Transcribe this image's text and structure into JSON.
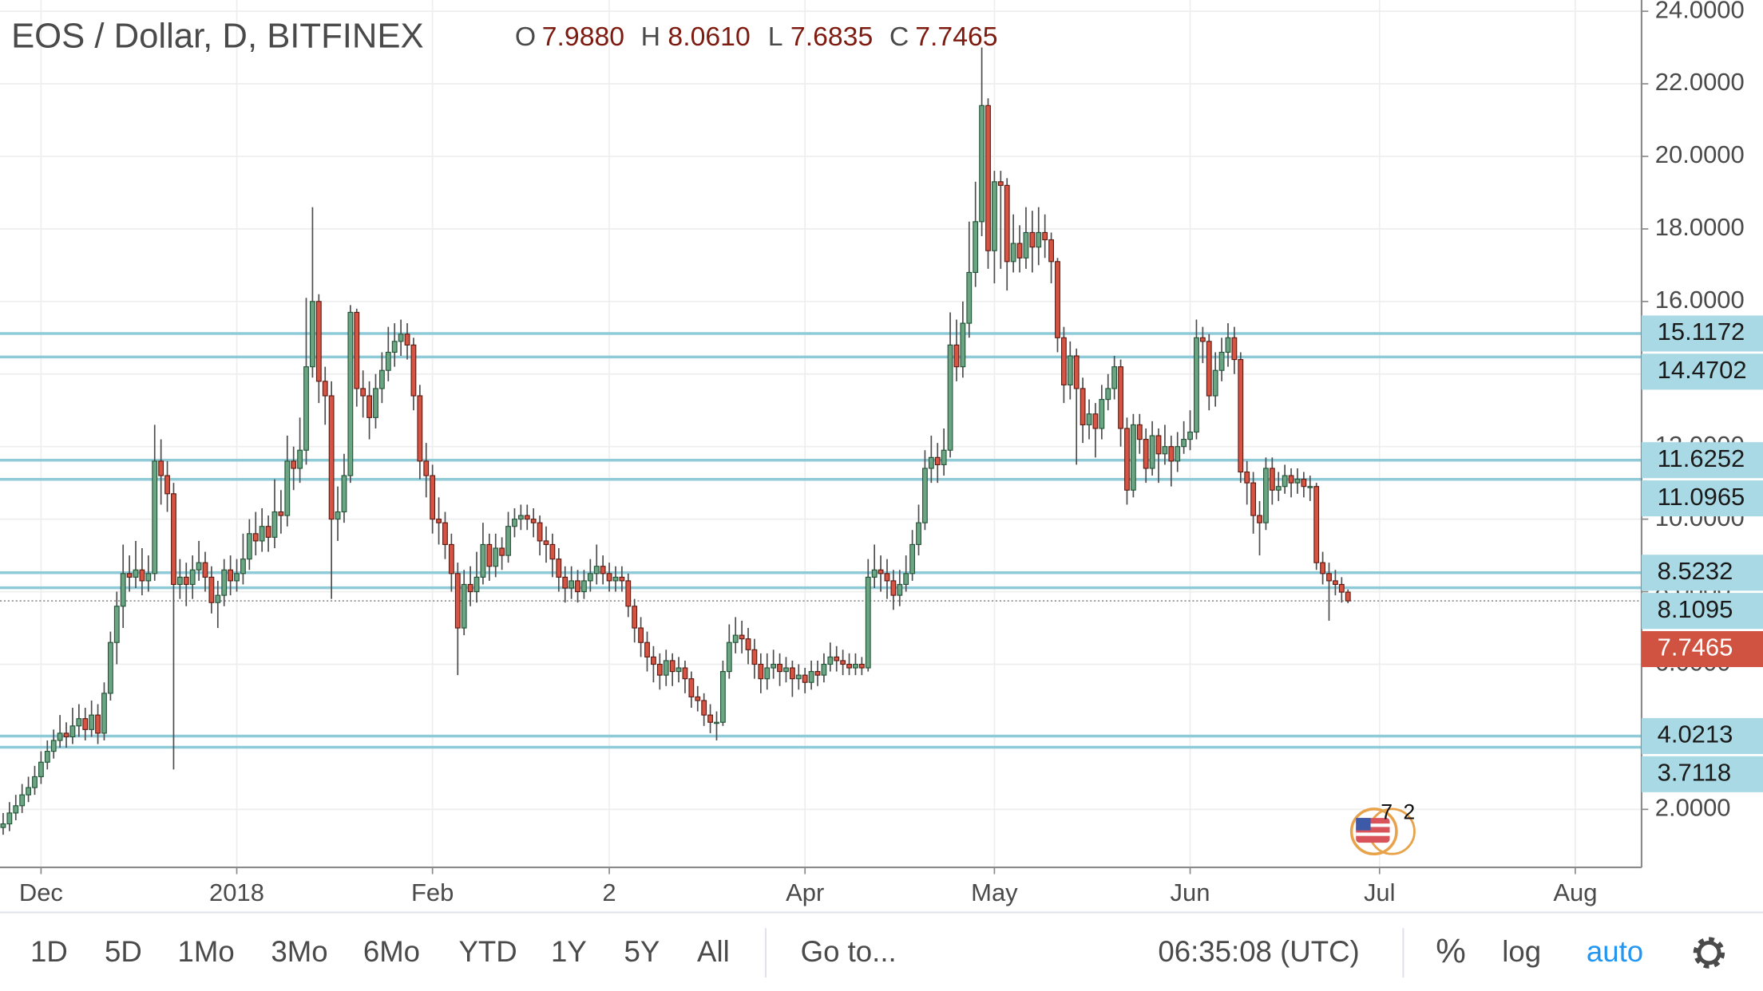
{
  "chart_data": {
    "type": "candlestick",
    "title": "EOS / Dollar, D, BITFINEX",
    "legend": [
      {
        "key": "O",
        "value": "7.9880"
      },
      {
        "key": "H",
        "value": "8.0610"
      },
      {
        "key": "L",
        "value": "7.6835"
      },
      {
        "key": "C",
        "value": "7.7465"
      }
    ],
    "categories": [
      null,
      null,
      null,
      null,
      null,
      null,
      "Dec",
      null,
      null,
      null,
      null,
      null,
      null,
      null,
      null,
      null,
      null,
      null,
      null,
      null,
      null,
      null,
      null,
      null,
      null,
      null,
      null,
      null,
      null,
      null,
      null,
      null,
      null,
      null,
      null,
      null,
      null,
      "2018",
      null,
      null,
      null,
      null,
      null,
      null,
      null,
      null,
      null,
      null,
      null,
      null,
      null,
      null,
      null,
      null,
      null,
      null,
      null,
      null,
      null,
      null,
      null,
      null,
      null,
      null,
      null,
      null,
      null,
      null,
      "Feb",
      null,
      null,
      null,
      null,
      null,
      null,
      null,
      null,
      null,
      null,
      null,
      null,
      null,
      null,
      null,
      null,
      null,
      null,
      null,
      null,
      null,
      null,
      null,
      null,
      null,
      null,
      null,
      "2",
      null,
      null,
      null,
      null,
      null,
      null,
      null,
      null,
      null,
      null,
      null,
      null,
      null,
      null,
      null,
      null,
      null,
      null,
      null,
      null,
      null,
      null,
      null,
      null,
      null,
      null,
      null,
      null,
      null,
      null,
      "Apr",
      null,
      null,
      null,
      null,
      null,
      null,
      null,
      null,
      null,
      null,
      null,
      null,
      null,
      null,
      null,
      null,
      null,
      null,
      null,
      null,
      null,
      null,
      null,
      null,
      null,
      null,
      null,
      null,
      null,
      "May",
      null,
      null,
      null,
      null,
      null,
      null,
      null,
      null,
      null,
      null,
      null,
      null,
      null,
      null,
      null,
      null,
      null,
      null,
      null,
      null,
      null,
      null,
      null,
      null,
      null,
      null,
      null,
      null,
      null,
      null,
      "Jun",
      null,
      null,
      null,
      null,
      null,
      null,
      null,
      null,
      null,
      null,
      null,
      null,
      null,
      null,
      null,
      null,
      null,
      null,
      null,
      null,
      null,
      null,
      null,
      null,
      null,
      null,
      null,
      null,
      null,
      "Jul",
      null,
      null,
      null,
      null,
      null,
      null,
      null,
      null,
      null,
      null,
      null,
      null,
      null,
      null,
      null,
      null,
      null,
      null,
      null,
      null,
      null,
      null,
      null,
      null,
      null,
      null,
      null,
      null,
      null,
      null,
      "Aug",
      null,
      null,
      null,
      null,
      null,
      null,
      null,
      null,
      null,
      null
    ],
    "open": [
      1.5,
      1.6,
      1.9,
      2.1,
      2.4,
      2.6,
      2.9,
      3.3,
      3.6,
      3.9,
      4.1,
      4.0,
      4.3,
      4.5,
      4.2,
      4.6,
      4.1,
      5.2,
      6.6,
      7.6,
      8.5,
      8.4,
      8.6,
      8.3,
      8.5,
      11.6,
      11.2,
      10.7,
      8.2,
      8.4,
      8.2,
      8.6,
      8.8,
      8.4,
      7.7,
      7.9,
      8.6,
      8.3,
      8.5,
      8.9,
      9.6,
      9.4,
      9.8,
      9.5,
      10.2,
      10.1,
      11.6,
      11.4,
      11.9,
      14.2,
      16.0,
      13.8,
      13.4,
      10.0,
      10.2,
      11.2,
      15.7,
      13.6,
      13.4,
      12.8,
      13.6,
      14.1,
      14.6,
      14.9,
      15.1,
      14.8,
      13.4,
      11.6,
      11.2,
      10.0,
      9.9,
      9.3,
      8.5,
      7.0,
      8.2,
      8.0,
      8.4,
      9.3,
      8.7,
      9.2,
      9.0,
      9.8,
      10.0,
      10.1,
      10.0,
      9.9,
      9.4,
      9.3,
      8.9,
      8.4,
      8.1,
      8.3,
      8.0,
      8.3,
      8.5,
      8.7,
      8.5,
      8.3,
      8.4,
      8.3,
      7.6,
      7.0,
      6.6,
      6.2,
      6.0,
      5.7,
      6.1,
      5.8,
      5.9,
      5.6,
      5.1,
      5.0,
      4.6,
      4.4,
      4.4,
      5.8,
      6.6,
      6.8,
      6.7,
      6.4,
      6.0,
      5.6,
      5.9,
      6.0,
      5.8,
      5.9,
      5.6,
      5.7,
      5.5,
      5.8,
      5.7,
      6.0,
      6.2,
      6.1,
      6.0,
      5.9,
      6.0,
      5.9,
      8.4,
      8.6,
      8.5,
      8.3,
      7.9,
      8.2,
      8.5,
      9.3,
      9.9,
      11.4,
      11.7,
      11.5,
      11.9,
      14.8,
      14.2,
      15.4,
      16.8,
      18.2,
      21.4,
      17.4,
      19.3,
      19.2,
      17.1,
      17.6,
      17.2,
      17.9,
      17.5,
      17.9,
      17.7,
      17.1,
      15.0,
      13.7,
      14.5,
      13.6,
      12.6,
      12.9,
      12.5,
      13.3,
      13.6,
      14.2,
      12.5,
      10.8,
      12.6,
      12.2,
      11.4,
      12.3,
      11.8,
      12.0,
      11.6,
      12.0,
      12.2,
      12.4,
      15.0,
      14.9,
      13.4,
      14.1,
      14.6,
      15.0,
      14.4,
      11.3,
      11.0,
      10.1,
      9.9,
      11.4,
      10.8,
      10.9,
      11.2,
      11.0,
      11.1,
      10.9,
      10.9,
      8.8,
      8.5,
      8.3,
      8.2,
      7.988,
      null,
      null,
      null,
      null,
      null,
      null,
      null,
      null,
      null,
      null,
      null,
      null,
      null,
      null,
      null,
      null,
      null,
      null,
      null,
      null,
      null,
      null,
      null,
      null,
      null,
      null,
      null,
      null,
      null,
      null,
      null,
      null,
      null,
      null,
      null,
      null,
      null,
      null,
      null,
      null,
      null,
      null,
      null,
      null,
      null,
      null
    ],
    "high": [
      1.9,
      2.2,
      2.4,
      2.7,
      2.9,
      3.2,
      3.6,
      3.9,
      4.2,
      4.6,
      4.4,
      4.8,
      4.9,
      4.8,
      5.0,
      4.9,
      5.5,
      6.9,
      8.0,
      9.3,
      9.0,
      9.4,
      9.2,
      9.0,
      12.6,
      12.2,
      11.6,
      11.0,
      8.9,
      8.8,
      9.0,
      9.4,
      9.1,
      8.7,
      8.3,
      8.9,
      9.0,
      8.9,
      9.6,
      10.0,
      10.2,
      10.3,
      10.1,
      11.1,
      10.8,
      12.3,
      12.0,
      12.8,
      16.1,
      18.6,
      16.2,
      14.2,
      13.8,
      10.9,
      11.8,
      15.9,
      15.8,
      14.1,
      13.8,
      14.0,
      14.6,
      15.3,
      15.4,
      15.5,
      15.4,
      15.0,
      13.7,
      12.1,
      11.5,
      10.6,
      10.2,
      9.6,
      8.8,
      8.6,
      8.7,
      9.1,
      9.9,
      9.6,
      9.6,
      9.5,
      10.2,
      10.3,
      10.4,
      10.4,
      10.3,
      10.1,
      9.8,
      9.6,
      9.2,
      8.7,
      8.7,
      8.6,
      8.6,
      8.9,
      9.3,
      9.0,
      8.8,
      8.7,
      8.7,
      8.5,
      7.8,
      7.3,
      6.9,
      6.5,
      6.3,
      6.4,
      6.3,
      6.2,
      6.1,
      5.8,
      5.4,
      5.2,
      4.9,
      4.7,
      6.1,
      7.1,
      7.3,
      7.2,
      7.0,
      6.7,
      6.3,
      6.3,
      6.4,
      6.3,
      6.2,
      6.1,
      6.0,
      5.9,
      6.1,
      6.1,
      6.3,
      6.6,
      6.5,
      6.4,
      6.3,
      6.3,
      6.2,
      8.9,
      9.3,
      9.0,
      8.9,
      8.6,
      8.6,
      9.0,
      9.7,
      10.4,
      11.9,
      12.3,
      12.1,
      12.5,
      15.7,
      15.5,
      16.0,
      18.2,
      19.3,
      23.0,
      21.6,
      19.6,
      19.6,
      19.4,
      18.4,
      18.1,
      18.6,
      18.5,
      18.6,
      18.4,
      17.9,
      17.2,
      15.3,
      14.9,
      14.7,
      13.9,
      13.3,
      13.2,
      13.7,
      14.0,
      14.5,
      14.4,
      12.8,
      12.9,
      12.9,
      12.5,
      12.7,
      12.5,
      12.6,
      12.3,
      12.4,
      12.7,
      13.0,
      15.5,
      15.3,
      15.1,
      14.6,
      15.0,
      15.4,
      15.3,
      14.6,
      11.6,
      11.3,
      10.5,
      11.7,
      11.7,
      11.3,
      11.5,
      11.4,
      11.4,
      11.3,
      11.2,
      11.0,
      9.1,
      8.8,
      8.6,
      8.4,
      8.061,
      null,
      null,
      null,
      null,
      null,
      null,
      null,
      null,
      null,
      null,
      null,
      null,
      null,
      null,
      null,
      null,
      null,
      null,
      null,
      null,
      null,
      null,
      null,
      null,
      null,
      null,
      null,
      null,
      null,
      null,
      null,
      null,
      null,
      null,
      null,
      null,
      null,
      null,
      null,
      null,
      null,
      null,
      null,
      null,
      null,
      null
    ],
    "low": [
      1.3,
      1.4,
      1.7,
      1.9,
      2.2,
      2.4,
      2.7,
      3.1,
      3.4,
      3.7,
      3.7,
      3.8,
      4.0,
      3.9,
      4.0,
      3.8,
      3.9,
      5.0,
      6.0,
      7.0,
      8.0,
      8.1,
      7.9,
      8.0,
      8.3,
      10.4,
      10.2,
      3.1,
      7.8,
      7.6,
      7.8,
      8.3,
      8.0,
      7.4,
      7.0,
      7.6,
      7.9,
      8.0,
      8.2,
      8.6,
      9.0,
      9.1,
      9.1,
      9.2,
      9.6,
      9.8,
      10.8,
      11.0,
      11.5,
      13.9,
      13.2,
      12.6,
      7.8,
      9.4,
      9.9,
      11.0,
      13.1,
      12.8,
      12.2,
      12.5,
      13.2,
      13.8,
      14.2,
      14.5,
      14.4,
      13.0,
      11.1,
      10.6,
      9.6,
      9.3,
      8.9,
      8.0,
      5.7,
      6.8,
      7.6,
      7.7,
      8.2,
      8.3,
      8.4,
      8.6,
      8.8,
      9.5,
      9.7,
      9.7,
      9.5,
      9.0,
      8.8,
      8.4,
      8.0,
      7.7,
      7.8,
      7.7,
      7.8,
      8.0,
      8.2,
      8.2,
      8.0,
      8.0,
      8.0,
      7.3,
      6.6,
      6.2,
      5.8,
      5.5,
      5.3,
      5.4,
      5.4,
      5.5,
      5.2,
      4.8,
      4.7,
      4.3,
      4.1,
      3.9,
      4.3,
      5.6,
      6.3,
      6.3,
      6.0,
      5.6,
      5.2,
      5.3,
      5.6,
      5.4,
      5.5,
      5.1,
      5.3,
      5.2,
      5.3,
      5.4,
      5.5,
      5.8,
      5.8,
      5.7,
      5.7,
      5.7,
      5.7,
      5.8,
      8.1,
      8.0,
      7.8,
      7.5,
      7.6,
      8.0,
      8.3,
      9.0,
      9.7,
      11.0,
      11.0,
      11.2,
      11.7,
      13.8,
      13.9,
      15.0,
      16.4,
      17.8,
      16.9,
      16.5,
      16.9,
      16.3,
      16.8,
      16.8,
      16.9,
      16.8,
      17.0,
      17.2,
      16.5,
      14.6,
      13.2,
      13.3,
      11.5,
      12.1,
      12.2,
      11.7,
      12.2,
      13.0,
      13.3,
      12.0,
      10.4,
      10.6,
      11.8,
      11.0,
      11.2,
      11.0,
      11.5,
      10.9,
      11.3,
      11.8,
      11.9,
      12.2,
      14.3,
      13.0,
      13.1,
      13.8,
      14.2,
      14.0,
      11.0,
      10.4,
      9.6,
      9.0,
      9.7,
      10.4,
      10.5,
      10.7,
      10.6,
      10.7,
      10.6,
      10.5,
      8.6,
      8.2,
      7.2,
      7.9,
      7.7,
      7.6835,
      null,
      null,
      null,
      null,
      null,
      null,
      null,
      null,
      null,
      null,
      null,
      null,
      null,
      null,
      null,
      null,
      null,
      null,
      null,
      null,
      null,
      null,
      null,
      null,
      null,
      null,
      null,
      null,
      null,
      null,
      null,
      null,
      null,
      null,
      null,
      null,
      null,
      null,
      null,
      null,
      null,
      null,
      null,
      null,
      null,
      null
    ],
    "close": [
      1.6,
      1.9,
      2.1,
      2.4,
      2.6,
      2.9,
      3.3,
      3.6,
      3.9,
      4.1,
      4.0,
      4.3,
      4.5,
      4.2,
      4.6,
      4.1,
      5.2,
      6.6,
      7.6,
      8.5,
      8.4,
      8.6,
      8.3,
      8.5,
      11.6,
      11.2,
      10.7,
      8.2,
      8.4,
      8.2,
      8.6,
      8.8,
      8.4,
      7.7,
      7.9,
      8.6,
      8.3,
      8.5,
      8.9,
      9.6,
      9.4,
      9.8,
      9.5,
      10.2,
      10.1,
      11.6,
      11.4,
      11.9,
      14.2,
      16.0,
      13.8,
      13.4,
      10.0,
      10.2,
      11.2,
      15.7,
      13.6,
      13.4,
      12.8,
      13.6,
      14.1,
      14.6,
      14.9,
      15.1,
      14.8,
      13.4,
      11.6,
      11.2,
      10.0,
      9.9,
      9.3,
      8.5,
      7.0,
      8.2,
      8.0,
      8.4,
      9.3,
      8.7,
      9.2,
      9.0,
      9.8,
      10.0,
      10.1,
      10.0,
      9.9,
      9.4,
      9.3,
      8.9,
      8.4,
      8.1,
      8.3,
      8.0,
      8.3,
      8.5,
      8.7,
      8.5,
      8.3,
      8.4,
      8.3,
      7.6,
      7.0,
      6.6,
      6.2,
      6.0,
      5.7,
      6.1,
      5.8,
      5.9,
      5.6,
      5.1,
      5.0,
      4.6,
      4.4,
      4.4,
      5.8,
      6.6,
      6.8,
      6.7,
      6.4,
      6.0,
      5.6,
      5.9,
      6.0,
      5.8,
      5.9,
      5.6,
      5.7,
      5.5,
      5.8,
      5.7,
      6.0,
      6.2,
      6.1,
      6.0,
      5.9,
      6.0,
      5.9,
      8.4,
      8.6,
      8.5,
      8.3,
      7.9,
      8.2,
      8.5,
      9.3,
      9.9,
      11.4,
      11.7,
      11.5,
      11.9,
      14.8,
      14.2,
      15.4,
      16.8,
      18.2,
      21.4,
      17.4,
      19.3,
      19.2,
      17.1,
      17.6,
      17.2,
      17.9,
      17.5,
      17.9,
      17.7,
      17.1,
      15.0,
      13.7,
      14.5,
      13.6,
      12.6,
      12.9,
      12.5,
      13.3,
      13.6,
      14.2,
      12.5,
      10.8,
      12.6,
      12.2,
      11.4,
      12.3,
      11.8,
      12.0,
      11.6,
      12.0,
      12.2,
      12.4,
      15.0,
      14.9,
      13.4,
      14.1,
      14.6,
      15.0,
      14.4,
      11.3,
      11.0,
      10.1,
      9.9,
      11.4,
      10.8,
      10.9,
      11.2,
      11.0,
      11.1,
      10.9,
      10.9,
      8.8,
      8.5,
      8.3,
      8.2,
      7.988,
      7.7465,
      null,
      null,
      null,
      null,
      null,
      null,
      null,
      null,
      null,
      null,
      null,
      null,
      null,
      null,
      null,
      null,
      null,
      null,
      null,
      null,
      null,
      null,
      null,
      null,
      null,
      null,
      null,
      null,
      null,
      null,
      null,
      null,
      null,
      null,
      null,
      null,
      null,
      null,
      null,
      null,
      null,
      null,
      null,
      null,
      null,
      null
    ],
    "colors": {
      "up": "#6ba583",
      "up_border": "#225437",
      "down": "#d75442",
      "down_border": "#5b1a13",
      "wick": "#4d4d4d"
    },
    "ylim": [
      0.4,
      24.31
    ],
    "yticks": [
      {
        "value": 2,
        "label": "2.0000"
      },
      {
        "value": 4,
        "label": "4.0000"
      },
      {
        "value": 6,
        "label": "6.0000"
      },
      {
        "value": 8,
        "label": "8.0000"
      },
      {
        "value": 10,
        "label": "10.0000"
      },
      {
        "value": 12,
        "label": "12.0000"
      },
      {
        "value": 14,
        "label": "14.0000"
      },
      {
        "value": 16,
        "label": "16.0000"
      },
      {
        "value": 18,
        "label": "18.0000"
      },
      {
        "value": 20,
        "label": "20.0000"
      },
      {
        "value": 22,
        "label": "22.0000"
      },
      {
        "value": 24,
        "label": "24.0000"
      }
    ],
    "grid": true,
    "log_scale": false,
    "hlines": [
      15.1172,
      14.4702,
      11.6252,
      11.0965,
      8.5232,
      8.1095,
      4.0213,
      3.7118
    ],
    "hline_color": "#8fcad8",
    "last_price_color": "#cf5340"
  },
  "badge": {
    "counts": [
      "7",
      "2"
    ]
  },
  "toolbar": {
    "ranges": [
      "1D",
      "5D",
      "1Mo",
      "3Mo",
      "6Mo",
      "YTD",
      "1Y",
      "5Y",
      "All"
    ],
    "goto": "Go to...",
    "clock": "06:35:08 (UTC)",
    "percent": "%",
    "log": "log",
    "auto": "auto"
  }
}
